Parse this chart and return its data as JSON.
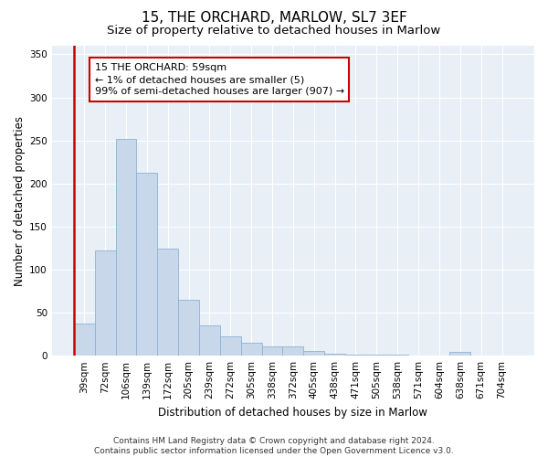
{
  "title_line1": "15, THE ORCHARD, MARLOW, SL7 3EF",
  "title_line2": "Size of property relative to detached houses in Marlow",
  "xlabel": "Distribution of detached houses by size in Marlow",
  "ylabel": "Number of detached properties",
  "categories": [
    "39sqm",
    "72sqm",
    "106sqm",
    "139sqm",
    "172sqm",
    "205sqm",
    "239sqm",
    "272sqm",
    "305sqm",
    "338sqm",
    "372sqm",
    "405sqm",
    "438sqm",
    "471sqm",
    "505sqm",
    "538sqm",
    "571sqm",
    "604sqm",
    "638sqm",
    "671sqm",
    "704sqm"
  ],
  "values": [
    37,
    122,
    252,
    212,
    124,
    65,
    35,
    22,
    15,
    11,
    11,
    5,
    2,
    1,
    1,
    1,
    0,
    0,
    4,
    0,
    0
  ],
  "bar_color": "#c8d8ea",
  "bar_edge_color": "#8ab4d4",
  "highlight_color": "#cc0000",
  "annotation_text": "15 THE ORCHARD: 59sqm\n← 1% of detached houses are smaller (5)\n99% of semi-detached houses are larger (907) →",
  "annotation_box_color": "#ffffff",
  "annotation_box_edge_color": "#cc0000",
  "ylim": [
    0,
    360
  ],
  "yticks": [
    0,
    50,
    100,
    150,
    200,
    250,
    300,
    350
  ],
  "footer_line1": "Contains HM Land Registry data © Crown copyright and database right 2024.",
  "footer_line2": "Contains public sector information licensed under the Open Government Licence v3.0.",
  "plot_bg_color": "#e8eff6",
  "title_fontsize": 11,
  "subtitle_fontsize": 9.5,
  "axis_label_fontsize": 8.5,
  "tick_fontsize": 7.5,
  "annotation_fontsize": 8,
  "footer_fontsize": 6.5
}
